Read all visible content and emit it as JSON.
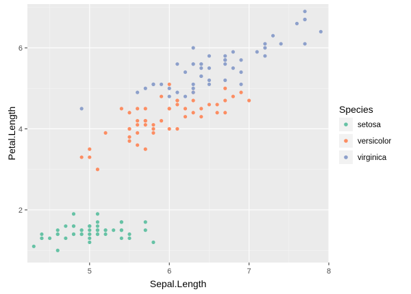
{
  "chart_data": {
    "type": "scatter",
    "xlabel": "Sepal.Length",
    "ylabel": "Petal.Length",
    "xlim": [
      4.22,
      8.0
    ],
    "ylim": [
      0.7,
      7.08
    ],
    "xticks": [
      5,
      6,
      7,
      8
    ],
    "yticks": [
      2,
      4,
      6
    ],
    "xtick_labels": [
      "5",
      "6",
      "7",
      "8"
    ],
    "ytick_labels": [
      "2",
      "4",
      "6"
    ],
    "grid": true,
    "background": "#ebebeb",
    "legend": {
      "title": "Species",
      "position": "right"
    },
    "series": [
      {
        "name": "setosa",
        "color": "#66c2a5",
        "x": [
          5.1,
          4.9,
          4.7,
          4.6,
          5.0,
          5.4,
          4.6,
          5.0,
          4.4,
          4.9,
          5.4,
          4.8,
          4.8,
          4.3,
          5.8,
          5.7,
          5.4,
          5.1,
          5.7,
          5.1,
          5.4,
          5.1,
          4.6,
          5.1,
          4.8,
          5.0,
          5.0,
          5.2,
          5.2,
          4.7,
          4.8,
          5.4,
          5.2,
          5.5,
          4.9,
          5.0,
          5.5,
          4.9,
          4.4,
          5.1,
          5.0,
          4.5,
          4.4,
          5.0,
          5.1,
          4.8,
          5.1,
          4.6,
          5.3,
          5.0
        ],
        "y": [
          1.4,
          1.4,
          1.3,
          1.5,
          1.4,
          1.7,
          1.4,
          1.5,
          1.4,
          1.5,
          1.5,
          1.6,
          1.4,
          1.1,
          1.2,
          1.5,
          1.3,
          1.4,
          1.7,
          1.5,
          1.7,
          1.5,
          1.0,
          1.7,
          1.9,
          1.6,
          1.6,
          1.5,
          1.4,
          1.6,
          1.6,
          1.5,
          1.5,
          1.4,
          1.5,
          1.2,
          1.3,
          1.4,
          1.3,
          1.5,
          1.3,
          1.3,
          1.3,
          1.6,
          1.9,
          1.4,
          1.6,
          1.4,
          1.5,
          1.4
        ]
      },
      {
        "name": "versicolor",
        "color": "#fc8d62",
        "x": [
          7.0,
          6.4,
          6.9,
          5.5,
          6.5,
          5.7,
          6.3,
          4.9,
          6.6,
          5.2,
          5.0,
          5.9,
          6.0,
          6.1,
          5.6,
          6.7,
          5.6,
          5.8,
          6.2,
          5.6,
          5.9,
          6.1,
          6.3,
          6.1,
          6.4,
          6.6,
          6.8,
          6.7,
          6.0,
          5.7,
          5.5,
          5.5,
          5.8,
          6.0,
          5.4,
          6.0,
          6.7,
          6.3,
          5.6,
          5.5,
          5.5,
          6.1,
          5.8,
          5.0,
          5.6,
          5.7,
          5.7,
          6.2,
          5.1,
          5.7
        ],
        "y": [
          4.7,
          4.5,
          4.9,
          4.0,
          4.6,
          4.5,
          4.7,
          3.3,
          4.6,
          3.9,
          3.5,
          4.2,
          4.0,
          4.7,
          3.6,
          4.4,
          4.5,
          4.1,
          4.5,
          3.9,
          4.8,
          4.0,
          4.9,
          4.7,
          4.3,
          4.4,
          4.8,
          5.0,
          4.5,
          3.5,
          3.8,
          3.7,
          3.9,
          5.1,
          4.5,
          4.5,
          4.7,
          4.4,
          4.1,
          4.0,
          4.4,
          4.6,
          4.0,
          3.3,
          4.2,
          4.2,
          4.2,
          4.3,
          3.0,
          4.1
        ]
      },
      {
        "name": "virginica",
        "color": "#8da0cb",
        "x": [
          6.3,
          5.8,
          7.1,
          6.3,
          6.5,
          7.6,
          4.9,
          7.3,
          6.7,
          7.2,
          6.5,
          6.4,
          6.8,
          5.7,
          5.8,
          6.4,
          6.5,
          7.7,
          7.7,
          6.0,
          6.9,
          5.6,
          7.7,
          6.3,
          6.7,
          7.2,
          6.2,
          6.1,
          6.4,
          7.2,
          7.4,
          7.9,
          6.4,
          6.3,
          6.1,
          7.7,
          6.3,
          6.4,
          6.0,
          6.9,
          6.7,
          6.9,
          5.8,
          6.8,
          6.7,
          6.7,
          6.3,
          6.5,
          6.2,
          5.9
        ],
        "y": [
          6.0,
          5.1,
          5.9,
          5.6,
          5.8,
          6.6,
          4.5,
          6.3,
          5.8,
          6.1,
          5.1,
          5.3,
          5.5,
          5.0,
          5.1,
          5.3,
          5.5,
          6.7,
          6.9,
          5.0,
          5.7,
          4.9,
          6.7,
          4.9,
          5.7,
          6.0,
          4.8,
          4.9,
          5.6,
          5.8,
          6.1,
          6.4,
          5.6,
          5.1,
          5.6,
          6.1,
          5.6,
          5.5,
          4.8,
          5.4,
          5.6,
          5.1,
          5.1,
          5.9,
          5.7,
          5.2,
          5.0,
          5.2,
          5.4,
          5.1
        ]
      }
    ]
  }
}
